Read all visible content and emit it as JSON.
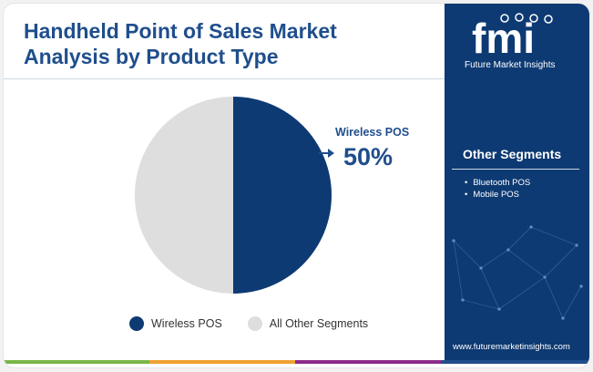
{
  "title": "Handheld Point of Sales Market Analysis by Product Type",
  "chart_data": {
    "type": "pie",
    "categories": [
      "Wireless POS",
      "All Other Segments"
    ],
    "values": [
      50,
      50
    ],
    "colors": [
      "#0e3a73",
      "#dedede"
    ],
    "callout": {
      "label": "Wireless POS",
      "value": "50%"
    },
    "legend": [
      "Wireless POS",
      "All Other Segments"
    ],
    "legend_placement": "bottom"
  },
  "sidebar": {
    "logo_mark": "fmi",
    "logo_name": "Future Market Insights",
    "segments_title": "Other Segments",
    "segments": [
      "Bluetooth POS",
      "Mobile POS"
    ],
    "url": "www.futuremarketinsights.com"
  },
  "colors": {
    "brand": "#0e3a73",
    "title": "#1f4e8c",
    "other": "#dedede",
    "bar": [
      "#7ab648",
      "#f0a030",
      "#8d2a8a",
      "#1f4e8c"
    ]
  }
}
